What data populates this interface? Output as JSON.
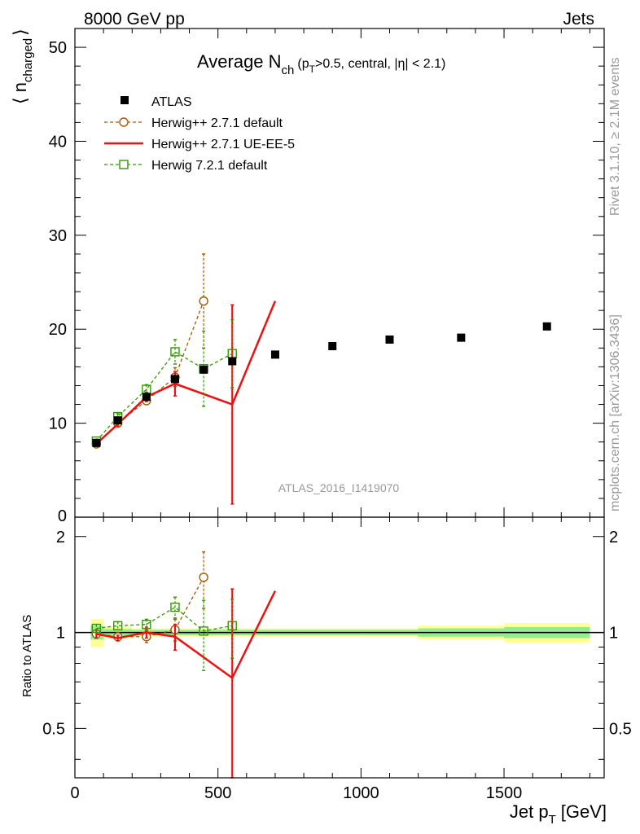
{
  "header": {
    "energy_label": "8000 GeV pp",
    "category_label": "Jets",
    "title_main": "Average N",
    "title_sub": "ch",
    "title_paren_open": "(p",
    "title_paren_sub": "T",
    "title_paren_rest": ">0.5, central, |η| < 2.1)",
    "rivet_label": "Rivet 3.1.10, ≥ 2.1M events",
    "mcplots_label": "mcplots.cern.ch [arXiv:1306.3436]",
    "analysis_label": "ATLAS_2016_I1419070"
  },
  "colors": {
    "atlas": "#000000",
    "herwig_271_default": "#a05a00",
    "herwig_271_ueee5": "#ee1111",
    "herwig_721_default": "#339900",
    "band_inner": "#90ee90",
    "band_outer": "#ffff99",
    "ratio_line": "#117711",
    "watermark": "#999999"
  },
  "chart_data": {
    "type": "scatter",
    "xlabel_main": "Jet p",
    "xlabel_sub": "T",
    "xlabel_unit": "[GeV]",
    "ylabel_main": "⟨ n",
    "ylabel_sub": "charged",
    "ylabel_close": "⟩",
    "ratio_ylabel": "Ratio to ATLAS",
    "xlim": [
      0,
      1850
    ],
    "ylim": [
      0,
      52
    ],
    "ratio_ylim": [
      0.35,
      2.3
    ],
    "x_ticks": [
      0,
      500,
      1000,
      1500
    ],
    "y_ticks": [
      10,
      20,
      30,
      40,
      50
    ],
    "ratio_ticks": [
      0.5,
      1,
      2
    ],
    "legend_position": "top-left",
    "series": [
      {
        "name": "ATLAS",
        "style": "data",
        "x": [
          75,
          150,
          250,
          350,
          450,
          550,
          700,
          900,
          1100,
          1350,
          1650
        ],
        "y": [
          7.9,
          10.3,
          12.8,
          14.7,
          15.7,
          16.6,
          17.3,
          18.2,
          18.9,
          19.1,
          20.3
        ],
        "ratio_band": {
          "x_low": [
            55,
            100,
            200,
            300,
            400,
            500,
            600,
            800,
            1000,
            1200,
            1500
          ],
          "x_high": [
            100,
            200,
            300,
            400,
            500,
            600,
            800,
            1000,
            1200,
            1500,
            1800
          ],
          "inner": [
            0.05,
            0.025,
            0.02,
            0.02,
            0.02,
            0.02,
            0.02,
            0.02,
            0.02,
            0.03,
            0.04
          ],
          "outer": [
            0.1,
            0.045,
            0.03,
            0.03,
            0.03,
            0.03,
            0.03,
            0.03,
            0.03,
            0.05,
            0.07
          ]
        }
      },
      {
        "name": "Herwig++ 2.7.1 default",
        "style": "dashed-circle",
        "x": [
          75,
          150,
          250,
          350,
          450
        ],
        "y": [
          7.8,
          10.0,
          12.4,
          14.9,
          23.0
        ],
        "err": [
          0.2,
          0.2,
          0.4,
          1.0,
          5.0
        ],
        "ratio": [
          0.99,
          0.97,
          0.97,
          1.02,
          1.49
        ],
        "ratio_err": [
          0.03,
          0.02,
          0.04,
          0.08,
          0.3
        ]
      },
      {
        "name": "Herwig++ 2.7.1 UE-EE-5",
        "style": "solid-line",
        "x": [
          75,
          150,
          250,
          350,
          550,
          700
        ],
        "y": [
          7.8,
          9.9,
          12.8,
          14.2,
          12.0,
          23.0
        ],
        "err": [
          0.2,
          0.2,
          0.5,
          1.3,
          10.6,
          0
        ],
        "ratio": [
          0.99,
          0.96,
          1.0,
          0.97,
          0.72,
          1.35
        ],
        "ratio_err": [
          0.03,
          0.02,
          0.04,
          0.09,
          0.65,
          0
        ]
      },
      {
        "name": "Herwig 7.2.1 default",
        "style": "dashed-square",
        "x": [
          75,
          150,
          250,
          350,
          450,
          550
        ],
        "y": [
          8.1,
          10.7,
          13.6,
          17.6,
          15.8,
          17.4
        ],
        "err": [
          0.2,
          0.3,
          0.5,
          1.3,
          4.0,
          3.6
        ],
        "ratio": [
          1.03,
          1.05,
          1.06,
          1.2,
          1.01,
          1.05
        ],
        "ratio_err": [
          0.03,
          0.03,
          0.04,
          0.09,
          0.25,
          0.22
        ]
      }
    ]
  }
}
